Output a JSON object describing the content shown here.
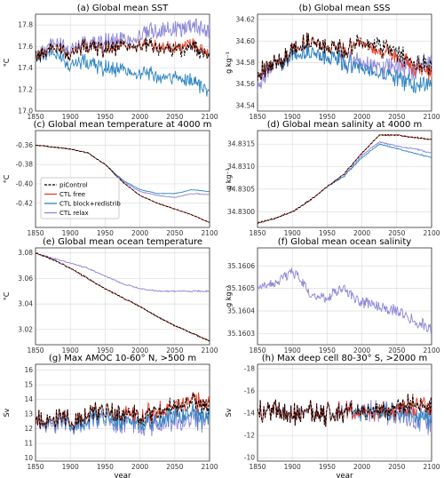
{
  "figure": {
    "xlabel": "year"
  },
  "series_styles": [
    {
      "key": "pic",
      "name": "piControl",
      "color": "#000000",
      "dash": true
    },
    {
      "key": "free",
      "name": "CTL free",
      "color": "#e8402a",
      "dash": false
    },
    {
      "key": "block",
      "name": "CTL block+redistrib",
      "color": "#2e86c1",
      "dash": false
    },
    {
      "key": "relax",
      "name": "CTL relax",
      "color": "#8e86d8",
      "dash": false
    }
  ],
  "chart_data": [
    {
      "id": "a",
      "type": "line",
      "title": "(a) Global mean SST",
      "ylabel": "°C",
      "ylim": [
        17.0,
        17.9
      ],
      "yticks": [
        "17.0",
        "17.2",
        "17.4",
        "17.6",
        "17.8"
      ],
      "ytickvals": [
        17.0,
        17.2,
        17.4,
        17.6,
        17.8
      ],
      "x": [
        1850,
        1875,
        1900,
        1925,
        1950,
        1975,
        2000,
        2025,
        2050,
        2075,
        2100
      ],
      "series": [
        {
          "key": "pic",
          "values": [
            17.5,
            17.6,
            17.55,
            17.6,
            17.58,
            17.6,
            17.62,
            17.58,
            17.56,
            17.6,
            17.5
          ]
        },
        {
          "key": "free",
          "values": [
            17.5,
            17.6,
            17.55,
            17.6,
            17.58,
            17.6,
            17.62,
            17.6,
            17.58,
            17.62,
            17.54
          ]
        },
        {
          "key": "block",
          "values": [
            17.5,
            17.55,
            17.45,
            17.45,
            17.4,
            17.38,
            17.35,
            17.32,
            17.3,
            17.28,
            17.2
          ]
        },
        {
          "key": "relax",
          "values": [
            17.5,
            17.65,
            17.6,
            17.62,
            17.65,
            17.66,
            17.7,
            17.75,
            17.75,
            17.8,
            17.75
          ]
        }
      ]
    },
    {
      "id": "b",
      "type": "line",
      "title": "(b) Global mean SSS",
      "ylabel": "g kg⁻¹",
      "ylim": [
        34.535,
        34.625
      ],
      "yticks": [
        "34.54",
        "34.56",
        "34.58",
        "34.60",
        "34.62"
      ],
      "ytickvals": [
        34.54,
        34.56,
        34.58,
        34.6,
        34.62
      ],
      "x": [
        1850,
        1875,
        1900,
        1925,
        1950,
        1975,
        2000,
        2025,
        2050,
        2075,
        2100
      ],
      "series": [
        {
          "key": "pic",
          "values": [
            34.57,
            34.58,
            34.59,
            34.6,
            34.595,
            34.59,
            34.6,
            34.595,
            34.59,
            34.58,
            34.575
          ]
        },
        {
          "key": "free",
          "values": [
            34.57,
            34.58,
            34.59,
            34.6,
            34.595,
            34.59,
            34.6,
            34.59,
            34.585,
            34.575,
            34.57
          ]
        },
        {
          "key": "block",
          "values": [
            34.57,
            34.58,
            34.585,
            34.59,
            34.585,
            34.58,
            34.575,
            34.57,
            34.565,
            34.56,
            34.56
          ]
        },
        {
          "key": "relax",
          "values": [
            34.56,
            34.58,
            34.585,
            34.59,
            34.585,
            34.58,
            34.58,
            34.575,
            34.575,
            34.575,
            34.58
          ]
        }
      ]
    },
    {
      "id": "c",
      "type": "line",
      "title": "(c) Global mean temperature at 4000 m",
      "ylabel": "°C",
      "ylim": [
        -0.445,
        -0.345
      ],
      "yticks": [
        "-0.36",
        "-0.38",
        "-0.40",
        "-0.42"
      ],
      "ytickvals": [
        -0.36,
        -0.38,
        -0.4,
        -0.42
      ],
      "legend": "center-left",
      "x": [
        1850,
        1875,
        1900,
        1925,
        1950,
        1975,
        2000,
        2025,
        2050,
        2075,
        2100
      ],
      "series": [
        {
          "key": "pic",
          "values": [
            -0.36,
            -0.362,
            -0.364,
            -0.368,
            -0.38,
            -0.398,
            -0.412,
            -0.42,
            -0.426,
            -0.432,
            -0.44
          ]
        },
        {
          "key": "free",
          "values": [
            -0.36,
            -0.362,
            -0.364,
            -0.368,
            -0.38,
            -0.398,
            -0.412,
            -0.42,
            -0.426,
            -0.432,
            -0.44
          ]
        },
        {
          "key": "block",
          "values": [
            -0.36,
            -0.362,
            -0.364,
            -0.368,
            -0.38,
            -0.396,
            -0.406,
            -0.41,
            -0.41,
            -0.406,
            -0.408
          ]
        },
        {
          "key": "relax",
          "values": [
            -0.36,
            -0.362,
            -0.364,
            -0.368,
            -0.38,
            -0.397,
            -0.408,
            -0.412,
            -0.414,
            -0.41,
            -0.411
          ]
        }
      ]
    },
    {
      "id": "d",
      "type": "line",
      "title": "(d) Global mean salinity at 4000 m",
      "ylabel": "g kg⁻¹",
      "ylim": [
        34.82965,
        34.8318
      ],
      "yticks": [
        "34.8300",
        "34.8305",
        "34.8310",
        "34.8315"
      ],
      "ytickvals": [
        34.83,
        34.8305,
        34.831,
        34.8315
      ],
      "x": [
        1850,
        1875,
        1900,
        1925,
        1950,
        1975,
        2000,
        2025,
        2050,
        2075,
        2100
      ],
      "series": [
        {
          "key": "pic",
          "values": [
            34.82975,
            34.82985,
            34.83,
            34.83025,
            34.83055,
            34.83085,
            34.8313,
            34.8317,
            34.8317,
            34.83165,
            34.8316
          ]
        },
        {
          "key": "free",
          "values": [
            34.82975,
            34.82985,
            34.83,
            34.83025,
            34.83055,
            34.83085,
            34.8313,
            34.8317,
            34.8317,
            34.83165,
            34.8316
          ]
        },
        {
          "key": "block",
          "values": [
            34.82975,
            34.82985,
            34.83,
            34.83025,
            34.83055,
            34.8308,
            34.8312,
            34.8315,
            34.8314,
            34.8313,
            34.8312
          ]
        },
        {
          "key": "relax",
          "values": [
            34.82975,
            34.82985,
            34.83,
            34.83025,
            34.83055,
            34.8308,
            34.83125,
            34.83155,
            34.83145,
            34.8314,
            34.8313
          ]
        }
      ]
    },
    {
      "id": "e",
      "type": "line",
      "title": "(e) Global mean ocean temperature",
      "ylabel": "°C",
      "ylim": [
        3.008,
        3.084
      ],
      "yticks": [
        "3.02",
        "3.04",
        "3.06",
        "3.08"
      ],
      "ytickvals": [
        3.02,
        3.04,
        3.06,
        3.08
      ],
      "x": [
        1850,
        1875,
        1900,
        1925,
        1950,
        1975,
        2000,
        2025,
        2050,
        2075,
        2100
      ],
      "series": [
        {
          "key": "pic",
          "values": [
            3.08,
            3.075,
            3.068,
            3.06,
            3.052,
            3.045,
            3.038,
            3.03,
            3.023,
            3.017,
            3.011
          ]
        },
        {
          "key": "free",
          "values": [
            3.08,
            3.075,
            3.068,
            3.06,
            3.052,
            3.045,
            3.038,
            3.03,
            3.023,
            3.017,
            3.011
          ]
        },
        {
          "key": "block",
          "values": [
            3.08,
            3.075,
            3.068,
            3.06,
            3.052,
            3.045,
            3.038,
            3.03,
            3.023,
            3.017,
            3.011
          ]
        },
        {
          "key": "relax",
          "values": [
            3.08,
            3.076,
            3.072,
            3.068,
            3.062,
            3.056,
            3.052,
            3.05,
            3.05,
            3.05,
            3.05
          ]
        }
      ]
    },
    {
      "id": "f",
      "type": "line",
      "title": "(f) Global mean ocean salinity",
      "ylabel": "g kg⁻¹",
      "ylim": [
        35.16025,
        35.16068
      ],
      "yticks": [
        "35.1603",
        "35.1604",
        "35.1605",
        "35.1606"
      ],
      "ytickvals": [
        35.1603,
        35.1604,
        35.1605,
        35.1606
      ],
      "x": [
        1850,
        1875,
        1900,
        1925,
        1950,
        1975,
        2000,
        2025,
        2050,
        2075,
        2100
      ],
      "series": [
        {
          "key": "relax",
          "values": [
            35.1605,
            35.16052,
            35.16058,
            35.16048,
            35.16046,
            35.1605,
            35.16044,
            35.16042,
            35.1604,
            35.16036,
            35.16032
          ]
        }
      ]
    },
    {
      "id": "g",
      "type": "line",
      "title": "(g) Max AMOC 10-60° N, >500 m",
      "ylabel": "Sv",
      "ylim": [
        9.8,
        16.4
      ],
      "yticks": [
        "10",
        "11",
        "12",
        "13",
        "14",
        "15",
        "16"
      ],
      "ytickvals": [
        10,
        11,
        12,
        13,
        14,
        15,
        16
      ],
      "x": [
        1850,
        1875,
        1900,
        1925,
        1950,
        1975,
        2000,
        2025,
        2050,
        2075,
        2100
      ],
      "series": [
        {
          "key": "pic",
          "values": [
            12.5,
            12.8,
            12.6,
            13.0,
            13.2,
            13.0,
            12.8,
            13.2,
            13.5,
            13.8,
            13.4
          ]
        },
        {
          "key": "free",
          "values": [
            12.5,
            12.8,
            12.6,
            13.0,
            13.2,
            13.0,
            12.8,
            13.3,
            13.6,
            13.9,
            13.5
          ]
        },
        {
          "key": "block",
          "values": [
            12.5,
            12.6,
            12.4,
            12.6,
            12.8,
            12.5,
            12.3,
            12.6,
            12.8,
            13.0,
            12.6
          ]
        },
        {
          "key": "relax",
          "values": [
            12.5,
            12.4,
            12.3,
            12.5,
            12.6,
            12.3,
            12.2,
            12.4,
            12.6,
            12.7,
            12.4
          ]
        }
      ]
    },
    {
      "id": "h",
      "type": "line",
      "title": "(h) Max deep cell 80-30° S, >2000 m",
      "ylabel": "Sv",
      "ylim": [
        -9.7,
        -18.4
      ],
      "yticks": [
        "-10",
        "-12",
        "-14",
        "-16",
        "-18"
      ],
      "ytickvals": [
        -10,
        -12,
        -14,
        -16,
        -18
      ],
      "x": [
        1850,
        1875,
        1900,
        1925,
        1950,
        1975,
        2000,
        2025,
        2050,
        2075,
        2100
      ],
      "series": [
        {
          "key": "pic",
          "values": [
            -14.0,
            -14.5,
            -14.0,
            -14.2,
            -14.0,
            -14.2,
            -14.0,
            -14.3,
            -14.5,
            -14.8,
            -14.5
          ]
        },
        {
          "key": "free",
          "values": [
            -14.0,
            -14.5,
            -14.0,
            -14.2,
            -14.0,
            -14.2,
            -14.0,
            -14.3,
            -14.4,
            -14.7,
            -14.4
          ]
        },
        {
          "key": "block",
          "values": [
            -14.0,
            -14.5,
            -14.0,
            -14.2,
            -14.0,
            -14.2,
            -14.0,
            -14.2,
            -14.0,
            -13.8,
            -13.5
          ]
        },
        {
          "key": "relax",
          "values": [
            -14.0,
            -14.5,
            -14.0,
            -14.2,
            -14.0,
            -14.2,
            -14.0,
            -14.2,
            -14.0,
            -13.6,
            -13.2
          ]
        }
      ]
    }
  ],
  "xticks": [
    "1850",
    "1900",
    "1950",
    "2000",
    "2050",
    "2100"
  ]
}
